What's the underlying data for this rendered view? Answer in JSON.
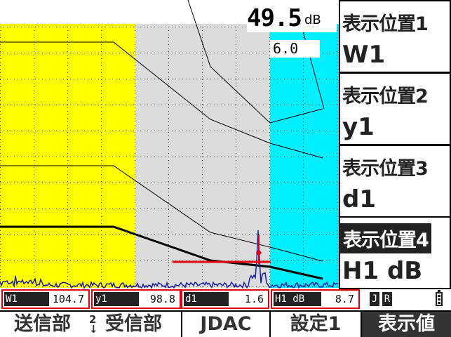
{
  "gain": {
    "value": "49.5",
    "unit": "dB",
    "step": "6.0"
  },
  "softkeys": [
    {
      "title": "表示位置1",
      "value": "W1"
    },
    {
      "title": "表示位置2",
      "value": "y1"
    },
    {
      "title": "表示位置3",
      "value": "d1"
    },
    {
      "title": "表示位置4",
      "value": "H1 dB",
      "selected": true
    }
  ],
  "readouts": {
    "w1": {
      "label": "W1",
      "value": "104.7"
    },
    "y1": {
      "label": "y1",
      "value": "98.8"
    },
    "d1": {
      "label": "d1",
      "value": "1.6"
    },
    "h1": {
      "label": "H1 dB",
      "value": "8.7"
    }
  },
  "status": {
    "j": "J",
    "r": "R",
    "icon": "battery-icon"
  },
  "fkeys": {
    "transmit_receive": {
      "left": "送信部",
      "sep_top": "2",
      "sep_bottom": "↓",
      "right": "受信部"
    },
    "jdac": "JDAC",
    "setting": "設定1",
    "display_value": "表示値"
  },
  "colors": {
    "gate_a": "#ffff00",
    "gate_b": "#dcdcdc",
    "gate_c": "#00f0ff",
    "echo": "#1a1aa8",
    "marker": "#e00010",
    "readout_border": "#e00010"
  }
}
